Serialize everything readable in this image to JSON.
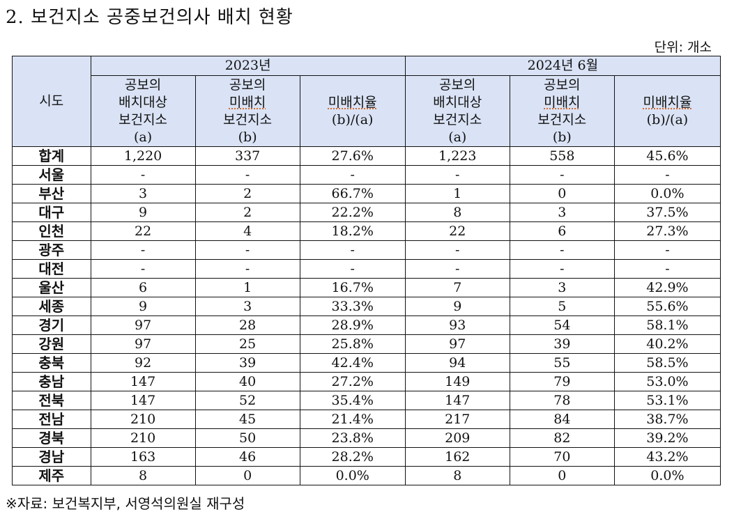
{
  "title": "2. 보건지소 공중보건의사 배치 현황",
  "unit": "단위: 개소",
  "table": {
    "region_header": "시도",
    "year_groups": [
      "2023년",
      "2024년  6월"
    ],
    "sub_headers": [
      {
        "line1": "공보의",
        "line2": "배치대상",
        "line3": "보건지소",
        "line4": "(a)"
      },
      {
        "line1": "공보의",
        "line2": "미배치",
        "line3": "보건지소",
        "line4": "(b)"
      },
      {
        "line1": "미배치율",
        "line2": "(b)/(a)"
      }
    ],
    "rows": [
      {
        "region": "합계",
        "y2023_a": "1,220",
        "y2023_b": "337",
        "y2023_rate": "27.6%",
        "y2024_a": "1,223",
        "y2024_b": "558",
        "y2024_rate": "45.6%"
      },
      {
        "region": "서울",
        "y2023_a": "-",
        "y2023_b": "-",
        "y2023_rate": "-",
        "y2024_a": "-",
        "y2024_b": "-",
        "y2024_rate": "-"
      },
      {
        "region": "부산",
        "y2023_a": "3",
        "y2023_b": "2",
        "y2023_rate": "66.7%",
        "y2024_a": "1",
        "y2024_b": "0",
        "y2024_rate": "0.0%"
      },
      {
        "region": "대구",
        "y2023_a": "9",
        "y2023_b": "2",
        "y2023_rate": "22.2%",
        "y2024_a": "8",
        "y2024_b": "3",
        "y2024_rate": "37.5%"
      },
      {
        "region": "인천",
        "y2023_a": "22",
        "y2023_b": "4",
        "y2023_rate": "18.2%",
        "y2024_a": "22",
        "y2024_b": "6",
        "y2024_rate": "27.3%"
      },
      {
        "region": "광주",
        "y2023_a": "-",
        "y2023_b": "-",
        "y2023_rate": "-",
        "y2024_a": "-",
        "y2024_b": "-",
        "y2024_rate": "-"
      },
      {
        "region": "대전",
        "y2023_a": "-",
        "y2023_b": "-",
        "y2023_rate": "-",
        "y2024_a": "-",
        "y2024_b": "-",
        "y2024_rate": "-"
      },
      {
        "region": "울산",
        "y2023_a": "6",
        "y2023_b": "1",
        "y2023_rate": "16.7%",
        "y2024_a": "7",
        "y2024_b": "3",
        "y2024_rate": "42.9%"
      },
      {
        "region": "세종",
        "y2023_a": "9",
        "y2023_b": "3",
        "y2023_rate": "33.3%",
        "y2024_a": "9",
        "y2024_b": "5",
        "y2024_rate": "55.6%"
      },
      {
        "region": "경기",
        "y2023_a": "97",
        "y2023_b": "28",
        "y2023_rate": "28.9%",
        "y2024_a": "93",
        "y2024_b": "54",
        "y2024_rate": "58.1%"
      },
      {
        "region": "강원",
        "y2023_a": "97",
        "y2023_b": "25",
        "y2023_rate": "25.8%",
        "y2024_a": "97",
        "y2024_b": "39",
        "y2024_rate": "40.2%"
      },
      {
        "region": "충북",
        "y2023_a": "92",
        "y2023_b": "39",
        "y2023_rate": "42.4%",
        "y2024_a": "94",
        "y2024_b": "55",
        "y2024_rate": "58.5%"
      },
      {
        "region": "충남",
        "y2023_a": "147",
        "y2023_b": "40",
        "y2023_rate": "27.2%",
        "y2024_a": "149",
        "y2024_b": "79",
        "y2024_rate": "53.0%"
      },
      {
        "region": "전북",
        "y2023_a": "147",
        "y2023_b": "52",
        "y2023_rate": "35.4%",
        "y2024_a": "147",
        "y2024_b": "78",
        "y2024_rate": "53.1%"
      },
      {
        "region": "전남",
        "y2023_a": "210",
        "y2023_b": "45",
        "y2023_rate": "21.4%",
        "y2024_a": "217",
        "y2024_b": "84",
        "y2024_rate": "38.7%"
      },
      {
        "region": "경북",
        "y2023_a": "210",
        "y2023_b": "50",
        "y2023_rate": "23.8%",
        "y2024_a": "209",
        "y2024_b": "82",
        "y2024_rate": "39.2%"
      },
      {
        "region": "경남",
        "y2023_a": "163",
        "y2023_b": "46",
        "y2023_rate": "28.2%",
        "y2024_a": "162",
        "y2024_b": "70",
        "y2024_rate": "43.2%"
      },
      {
        "region": "제주",
        "y2023_a": "8",
        "y2023_b": "0",
        "y2023_rate": "0.0%",
        "y2024_a": "8",
        "y2024_b": "0",
        "y2024_rate": "0.0%"
      }
    ]
  },
  "footnote": "※자료: 보건복지부, 서영석의원실 재구성",
  "colors": {
    "header_bg": "#dae3f5",
    "border": "#111111",
    "spellcheck_underline": "#d0652a"
  }
}
